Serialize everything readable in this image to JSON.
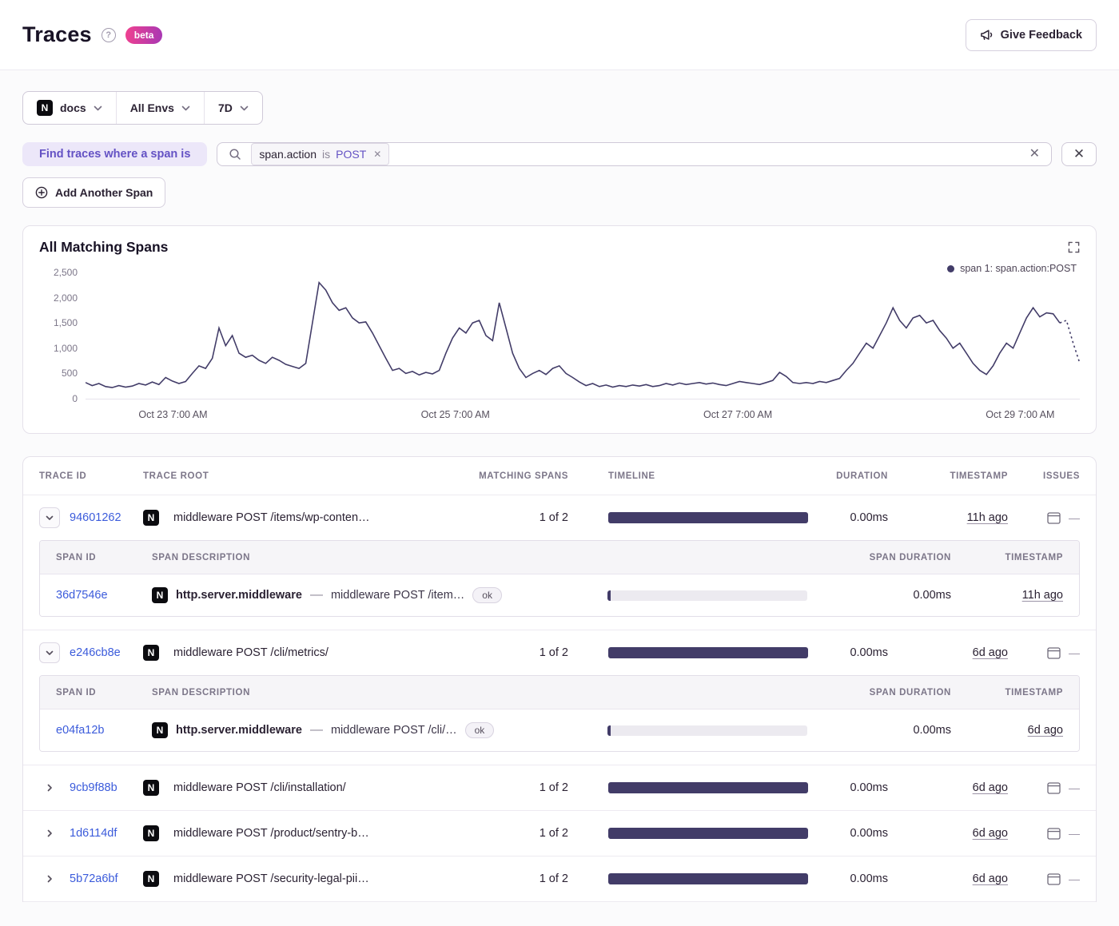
{
  "header": {
    "title": "Traces",
    "beta_label": "beta",
    "feedback_label": "Give Feedback"
  },
  "icons": {
    "help": "?",
    "close": "✕",
    "dash": "—"
  },
  "filters": {
    "project": "docs",
    "environment": "All Envs",
    "period": "7D",
    "platform_label": "N"
  },
  "span_filter": {
    "label": "Find traces where a span is",
    "token": {
      "key": "span.action",
      "op": "is",
      "value": "POST"
    },
    "add_button": "Add Another Span"
  },
  "chart": {
    "title": "All Matching Spans"
  },
  "chart_data": {
    "type": "line",
    "title": "All Matching Spans",
    "series": [
      {
        "name": "span 1: span.action:POST",
        "values": [
          320,
          260,
          300,
          240,
          220,
          260,
          230,
          250,
          300,
          270,
          330,
          280,
          420,
          350,
          300,
          340,
          500,
          650,
          600,
          800,
          1400,
          1050,
          1250,
          900,
          820,
          860,
          760,
          700,
          820,
          760,
          680,
          640,
          600,
          700,
          1500,
          2300,
          2150,
          1900,
          1750,
          1800,
          1600,
          1500,
          1520,
          1300,
          1050,
          800,
          560,
          600,
          500,
          540,
          470,
          520,
          490,
          560,
          900,
          1200,
          1400,
          1300,
          1500,
          1550,
          1250,
          1150,
          1900,
          1400,
          900,
          600,
          420,
          500,
          560,
          480,
          600,
          650,
          500,
          420,
          330,
          260,
          300,
          240,
          270,
          230,
          260,
          240,
          270,
          250,
          280,
          240,
          260,
          300,
          270,
          310,
          280,
          300,
          320,
          290,
          310,
          280,
          260,
          300,
          340,
          320,
          300,
          280,
          320,
          360,
          520,
          440,
          320,
          300,
          320,
          300,
          340,
          320,
          360,
          400,
          560,
          700,
          900,
          1100,
          1000,
          1250,
          1500,
          1800,
          1550,
          1400,
          1600,
          1650,
          1500,
          1550,
          1350,
          1200,
          1000,
          1100,
          900,
          700,
          560,
          480,
          650,
          900,
          1100,
          1000,
          1300,
          1600,
          1800,
          1620,
          1700,
          1680,
          1500,
          1550,
          1100,
          700
        ]
      }
    ],
    "ylim": [
      0,
      2500
    ],
    "ytick_values": [
      2500,
      2000,
      1500,
      1000,
      500,
      0
    ],
    "ytick_labels": [
      "2,500",
      "2,000",
      "1,500",
      "1,000",
      "500",
      "0"
    ],
    "xtick_labels": [
      "Oct 23 7:00 AM",
      "Oct 25 7:00 AM",
      "Oct 27 7:00 AM",
      "Oct 29 7:00 AM"
    ],
    "xtick_positions": [
      0.088,
      0.372,
      0.656,
      0.94
    ],
    "legend_position": "top-right",
    "grid": false,
    "dashed_tail_points": 4
  },
  "table": {
    "platform_label": "N",
    "columns": [
      "TRACE ID",
      "TRACE ROOT",
      "MATCHING SPANS",
      "TIMELINE",
      "DURATION",
      "TIMESTAMP",
      "ISSUES"
    ],
    "span_columns": [
      "SPAN ID",
      "SPAN DESCRIPTION",
      "SPAN DURATION",
      "TIMESTAMP"
    ],
    "rows": [
      {
        "id": "94601262",
        "root": "middleware POST /items/wp-conten…",
        "matching": "1 of 2",
        "duration": "0.00ms",
        "timestamp": "11h ago",
        "expanded": true,
        "spans": [
          {
            "id": "36d7546e",
            "op": "http.server.middleware",
            "sep": "—",
            "desc": "middleware POST /item…",
            "status": "ok",
            "duration": "0.00ms",
            "timestamp": "11h ago"
          }
        ]
      },
      {
        "id": "e246cb8e",
        "root": "middleware POST /cli/metrics/",
        "matching": "1 of 2",
        "duration": "0.00ms",
        "timestamp": "6d ago",
        "expanded": true,
        "spans": [
          {
            "id": "e04fa12b",
            "op": "http.server.middleware",
            "sep": "—",
            "desc": "middleware POST /cli/…",
            "status": "ok",
            "duration": "0.00ms",
            "timestamp": "6d ago"
          }
        ]
      },
      {
        "id": "9cb9f88b",
        "root": "middleware POST /cli/installation/",
        "matching": "1 of 2",
        "duration": "0.00ms",
        "timestamp": "6d ago",
        "expanded": false
      },
      {
        "id": "1d6114df",
        "root": "middleware POST /product/sentry-b…",
        "matching": "1 of 2",
        "duration": "0.00ms",
        "timestamp": "6d ago",
        "expanded": false
      },
      {
        "id": "5b72a6bf",
        "root": "middleware POST /security-legal-pii…",
        "matching": "1 of 2",
        "duration": "0.00ms",
        "timestamp": "6d ago",
        "expanded": false
      }
    ]
  },
  "colors": {
    "accent_purple": "#6452c4",
    "link_blue": "#3b5bdb",
    "series_dark": "#423c68",
    "beta_pink": "#f0418f",
    "beta_purple": "#a737b4",
    "text_primary": "#2b2233",
    "text_muted": "#7c7689"
  }
}
